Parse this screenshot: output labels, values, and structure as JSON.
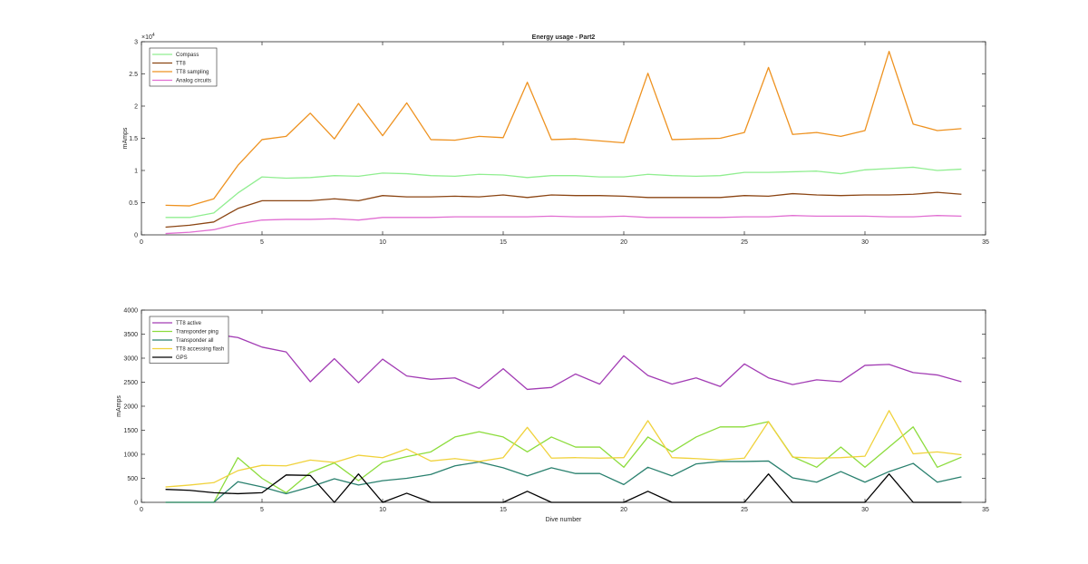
{
  "chart_data": [
    {
      "type": "line",
      "title": "Energy usage - Part2",
      "xlabel": "",
      "ylabel": "mAmps",
      "y_exponent_label": "×10",
      "y_exponent": "4",
      "xlim": [
        0,
        35
      ],
      "ylim": [
        0,
        30000
      ],
      "xticks": [
        0,
        5,
        10,
        15,
        20,
        25,
        30,
        35
      ],
      "yticks": [
        0,
        5000,
        10000,
        15000,
        20000,
        25000,
        30000
      ],
      "ytick_labels": [
        "0",
        "0.5",
        "1",
        "1.5",
        "2",
        "2.5",
        "3"
      ],
      "grid": false,
      "legend_position": "top-left",
      "x": [
        1,
        2,
        3,
        4,
        5,
        6,
        7,
        8,
        9,
        10,
        11,
        12,
        13,
        14,
        15,
        16,
        17,
        18,
        19,
        20,
        21,
        22,
        23,
        24,
        25,
        26,
        27,
        28,
        29,
        30,
        31,
        32,
        33,
        34
      ],
      "series": [
        {
          "name": "Compass",
          "color": "#90ee90",
          "values": [
            2700,
            2700,
            3400,
            6500,
            9000,
            8800,
            8900,
            9200,
            9100,
            9600,
            9500,
            9200,
            9100,
            9400,
            9300,
            8900,
            9200,
            9200,
            9000,
            9000,
            9400,
            9200,
            9100,
            9200,
            9700,
            9700,
            9800,
            9900,
            9500,
            10100,
            10300,
            10500,
            10000,
            10200
          ]
        },
        {
          "name": "TT8",
          "color": "#8b4513",
          "values": [
            1200,
            1500,
            2000,
            4100,
            5300,
            5300,
            5300,
            5600,
            5300,
            6100,
            5900,
            5900,
            6000,
            5900,
            6200,
            5800,
            6200,
            6100,
            6100,
            6000,
            5800,
            5800,
            5800,
            5800,
            6100,
            6000,
            6400,
            6200,
            6100,
            6200,
            6200,
            6300,
            6600,
            6300
          ]
        },
        {
          "name": "TT8 sampling",
          "color": "#ee9220",
          "values": [
            4600,
            4500,
            5600,
            10800,
            14800,
            15300,
            18900,
            14900,
            20400,
            15400,
            20500,
            14800,
            14700,
            15300,
            15100,
            23700,
            14800,
            14900,
            14600,
            14300,
            25100,
            14800,
            14900,
            15000,
            15900,
            26000,
            15600,
            15900,
            15300,
            16200,
            28500,
            17200,
            16200,
            16500
          ]
        },
        {
          "name": "Analog circuits",
          "color": "#e16ed2",
          "values": [
            200,
            400,
            800,
            1700,
            2300,
            2400,
            2400,
            2500,
            2300,
            2700,
            2700,
            2700,
            2800,
            2800,
            2800,
            2800,
            2900,
            2800,
            2800,
            2900,
            2700,
            2700,
            2700,
            2700,
            2800,
            2800,
            3000,
            2900,
            2900,
            2900,
            2800,
            2800,
            3000,
            2900
          ]
        }
      ]
    },
    {
      "type": "line",
      "title": "",
      "xlabel": "Dive number",
      "ylabel": "mAmps",
      "xlim": [
        0,
        35
      ],
      "ylim": [
        0,
        4000
      ],
      "xticks": [
        0,
        5,
        10,
        15,
        20,
        25,
        30,
        35
      ],
      "yticks": [
        0,
        500,
        1000,
        1500,
        2000,
        2500,
        3000,
        3500,
        4000
      ],
      "grid": false,
      "legend_position": "top-left",
      "x": [
        1,
        2,
        3,
        4,
        5,
        6,
        7,
        8,
        9,
        10,
        11,
        12,
        13,
        14,
        15,
        16,
        17,
        18,
        19,
        20,
        21,
        22,
        23,
        24,
        25,
        26,
        27,
        28,
        29,
        30,
        31,
        32,
        33,
        34
      ],
      "series": [
        {
          "name": "TT8 active",
          "color": "#a23cb4",
          "values": [
            3750,
            3600,
            3500,
            3430,
            3230,
            3130,
            2510,
            2990,
            2490,
            2980,
            2630,
            2560,
            2590,
            2370,
            2780,
            2350,
            2390,
            2670,
            2460,
            3050,
            2640,
            2460,
            2590,
            2410,
            2880,
            2590,
            2450,
            2550,
            2510,
            2850,
            2870,
            2700,
            2650,
            2510
          ]
        },
        {
          "name": "Transponder ping",
          "color": "#8cdc3c",
          "values": [
            0,
            0,
            0,
            930,
            500,
            200,
            620,
            820,
            450,
            830,
            950,
            1050,
            1360,
            1470,
            1360,
            1050,
            1360,
            1150,
            1150,
            730,
            1360,
            1050,
            1360,
            1570,
            1570,
            1680,
            950,
            730,
            1150,
            730,
            1150,
            1570,
            730,
            940
          ]
        },
        {
          "name": "Transponder all",
          "color": "#29806e",
          "values": [
            0,
            0,
            0,
            430,
            320,
            180,
            320,
            490,
            360,
            450,
            500,
            580,
            760,
            840,
            720,
            550,
            720,
            600,
            600,
            370,
            730,
            550,
            800,
            850,
            850,
            860,
            510,
            420,
            640,
            420,
            640,
            810,
            420,
            530
          ]
        },
        {
          "name": "TT8 accessing flash",
          "color": "#f0d23c",
          "values": [
            320,
            360,
            410,
            660,
            770,
            760,
            880,
            830,
            980,
            930,
            1110,
            860,
            910,
            850,
            930,
            1560,
            920,
            930,
            920,
            930,
            1700,
            930,
            910,
            880,
            920,
            1680,
            940,
            920,
            930,
            960,
            1910,
            1010,
            1050,
            990
          ]
        },
        {
          "name": "GPS",
          "color": "#000000",
          "values": [
            270,
            250,
            200,
            180,
            200,
            570,
            560,
            0,
            590,
            0,
            190,
            0,
            0,
            0,
            0,
            230,
            0,
            0,
            0,
            0,
            230,
            0,
            0,
            0,
            0,
            590,
            0,
            0,
            0,
            0,
            590,
            0,
            0,
            0
          ]
        }
      ]
    }
  ]
}
